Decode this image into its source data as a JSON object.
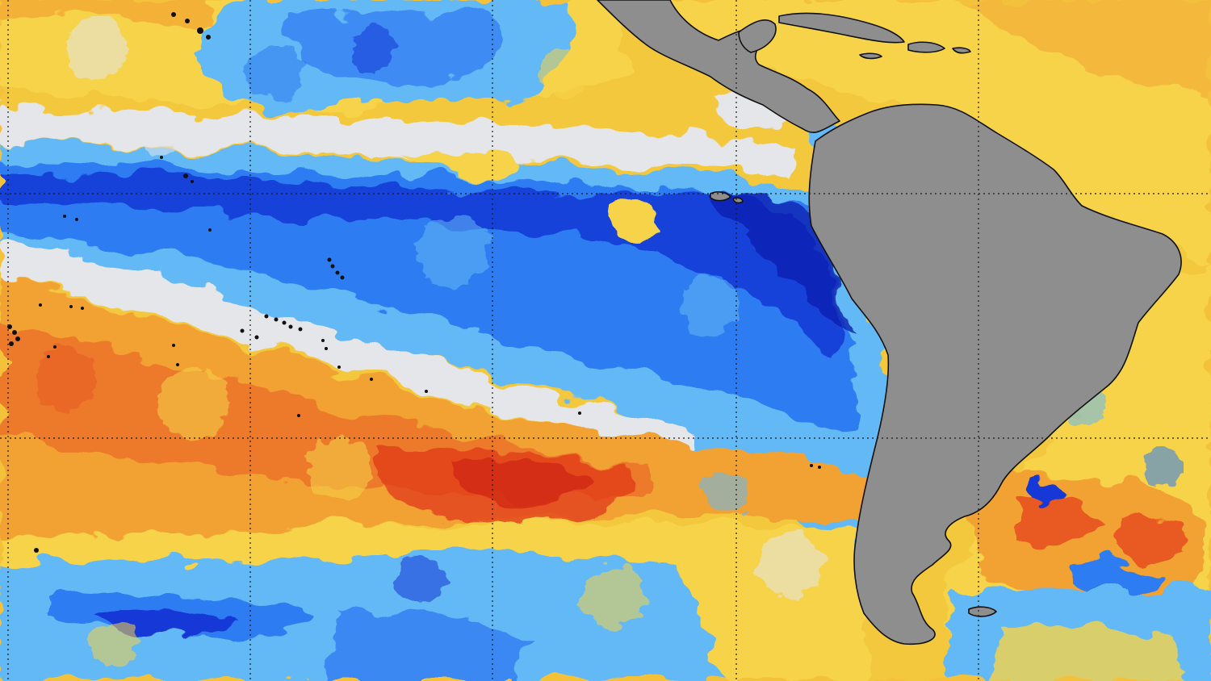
{
  "map": {
    "kind": "sea-surface temperature anomaly",
    "grid_lines": true,
    "grid_style": "dotted black",
    "colors": {
      "deep_cold": "#1238d6",
      "cold": "#2f7cf2",
      "cool": "#63b8f6",
      "neutral": "#e4e6ea",
      "warm": "#f6d34a",
      "hot": "#f2a232",
      "very_hot": "#e85a24",
      "extreme": "#7a1510",
      "land": "#8e8e8e",
      "coastline": "#111111",
      "grid": "#1a1a1a"
    },
    "regions": [
      "eastern-tropical-pacific-cold-tongue",
      "south-pacific-warm-band",
      "north-pacific-warm-band",
      "southern-ocean-mixed-anomalies",
      "south-atlantic-eddies",
      "caribbean-warm-waters"
    ],
    "landmasses": [
      "south-america",
      "central-america",
      "mexico",
      "cuba",
      "hispaniola"
    ]
  }
}
